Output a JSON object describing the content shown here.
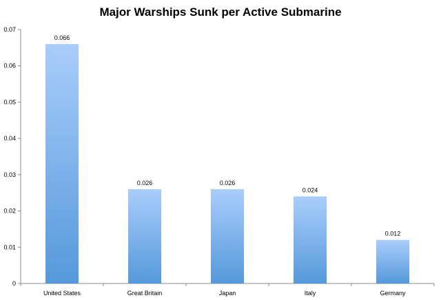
{
  "chart_data": {
    "type": "bar",
    "title": "Major Warships Sunk per Active Submarine",
    "xlabel": "",
    "ylabel": "",
    "categories": [
      "United States",
      "Great Britain",
      "Japan",
      "Italy",
      "Germany"
    ],
    "values": [
      0.066,
      0.026,
      0.026,
      0.024,
      0.012
    ],
    "data_labels": [
      "0.066",
      "0.026",
      "0.026",
      "0.024",
      "0.012"
    ],
    "ylim": [
      0,
      0.07
    ],
    "yticks": [
      "0",
      "0.01",
      "0.02",
      "0.03",
      "0.04",
      "0.05",
      "0.06",
      "0.07"
    ],
    "grid": false,
    "legend": "none",
    "colors": {
      "bar_top": "#a9cdfb",
      "bar_bottom": "#5599da",
      "axis": "#888888"
    }
  }
}
